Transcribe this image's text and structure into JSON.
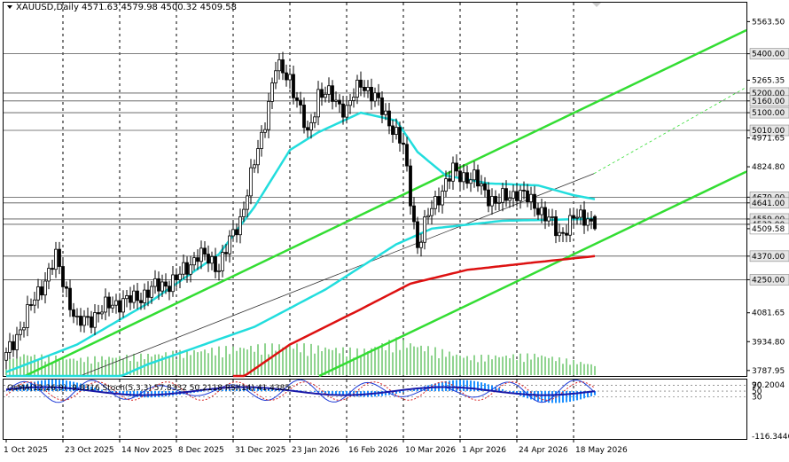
{
  "window": {
    "symbol_line": "XAUUSD,Daily  4571.63 4579.98 4500.32 4509.58",
    "oscillator_line": "OsMA(12,26,9) -9.8316  Stoch(5,3,3) 57.8332 50.2118  RSI(14) 41.4385"
  },
  "chart_data": {
    "type": "candlestick",
    "symbol": "XAUUSD",
    "timeframe": "Daily",
    "last_ohlc": {
      "open": 4571.63,
      "high": 4579.98,
      "low": 4500.32,
      "close": 4509.58
    },
    "price_axis": {
      "range": [
        3760,
        5660
      ],
      "tick_labels": [
        "5563.50",
        "5400.00",
        "5265.35",
        "5200.00",
        "5160.00",
        "5100.00",
        "5010.00",
        "4971.65",
        "4824.80",
        "4670.00",
        "4641.00",
        "4559.00",
        "4532.00",
        "4509.58",
        "4370.00",
        "4250.00",
        "4081.65",
        "3934.80",
        "3787.95"
      ]
    },
    "time_axis": {
      "labels": [
        "1 Oct 2025",
        "23 Oct 2025",
        "14 Nov 2025",
        "8 Dec 2025",
        "31 Dec 2025",
        "23 Jan 2026",
        "16 Feb 2026",
        "10 Mar 2026",
        "1 Apr 2026",
        "24 Apr 2026",
        "18 May 2026"
      ],
      "bar_index": [
        0,
        16,
        32,
        48,
        64,
        80,
        96,
        112,
        128,
        144,
        160
      ]
    },
    "horizontal_levels": [
      5400.0,
      5200.0,
      5160.0,
      5100.0,
      5010.0,
      4670.0,
      4641.0,
      4559.0,
      4532.0,
      4370.0,
      4250.0
    ],
    "series": [
      {
        "kind": "ohlc",
        "bar_index": [
          0,
          8,
          14,
          20,
          24,
          30,
          36,
          42,
          48,
          54,
          60,
          66,
          72,
          76,
          80,
          85,
          88,
          92,
          96,
          100,
          104,
          108,
          112,
          116,
          120,
          126,
          132,
          138,
          144,
          150,
          156,
          160,
          164,
          166
        ],
        "close": [
          3860,
          4150,
          4360,
          4020,
          4060,
          4130,
          4150,
          4210,
          4250,
          4380,
          4320,
          4560,
          4980,
          5330,
          5280,
          4980,
          5200,
          5180,
          5110,
          5260,
          5170,
          5060,
          4920,
          4420,
          4620,
          4800,
          4760,
          4640,
          4700,
          4620,
          4480,
          4560,
          4572,
          4510
        ]
      },
      {
        "kind": "sma",
        "color": "#22dddd",
        "bar_index": [
          0,
          20,
          40,
          60,
          70,
          80,
          88,
          100,
          110,
          116,
          124,
          136,
          150,
          160,
          166
        ],
        "values": [
          3780,
          3920,
          4130,
          4380,
          4620,
          4910,
          5000,
          5100,
          5060,
          4900,
          4780,
          4740,
          4730,
          4680,
          4660
        ]
      },
      {
        "kind": "sma",
        "color": "#22dddd",
        "bar_index": [
          0,
          40,
          70,
          90,
          110,
          120,
          140,
          166
        ],
        "values": [
          3500,
          3820,
          4010,
          4200,
          4430,
          4510,
          4550,
          4560
        ]
      },
      {
        "kind": "sma",
        "color": "#dd1111",
        "bar_index": [
          64,
          80,
          100,
          114,
          130,
          150,
          166
        ],
        "values": [
          3720,
          3920,
          4100,
          4230,
          4300,
          4340,
          4370
        ]
      }
    ],
    "volume": {
      "bar_index": [
        0,
        20,
        40,
        60,
        70,
        80,
        100,
        110,
        130,
        150,
        166
      ],
      "values": [
        22,
        16,
        20,
        26,
        28,
        30,
        24,
        34,
        18,
        20,
        10
      ]
    },
    "oscillator": {
      "name": "OsMA(12,26,9) / Stoch(5,3,3) / RSI(14)",
      "osma": -9.8316,
      "stoch_k": 57.8332,
      "stoch_d": 50.2118,
      "rsi": 41.4385,
      "axis_labels": [
        "90.2004",
        "70",
        "50",
        "30",
        "-116.3446"
      ],
      "range": [
        -116.3446,
        90.2004
      ]
    }
  }
}
